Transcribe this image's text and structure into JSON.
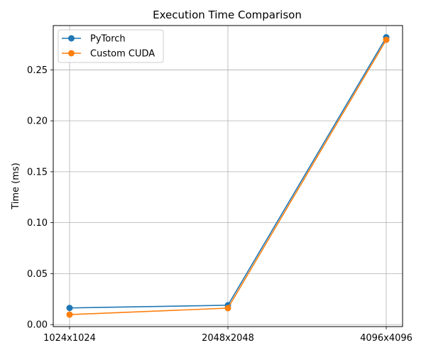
{
  "chart_data": {
    "type": "line",
    "title": "Execution Time Comparison",
    "xlabel": "",
    "ylabel": "Time (ms)",
    "categories": [
      "1024x1024",
      "2048x2048",
      "4096x4096"
    ],
    "yticks": [
      "0.00",
      "0.05",
      "0.10",
      "0.15",
      "0.20",
      "0.25"
    ],
    "ylim": [
      -0.002,
      0.2935
    ],
    "grid": true,
    "legend_position": "top-left",
    "series": [
      {
        "name": "PyTorch",
        "color": "#1f77b4",
        "values": [
          0.0163,
          0.019,
          0.282
        ]
      },
      {
        "name": "Custom CUDA",
        "color": "#ff7f0e",
        "values": [
          0.0098,
          0.0161,
          0.2795
        ]
      }
    ]
  }
}
